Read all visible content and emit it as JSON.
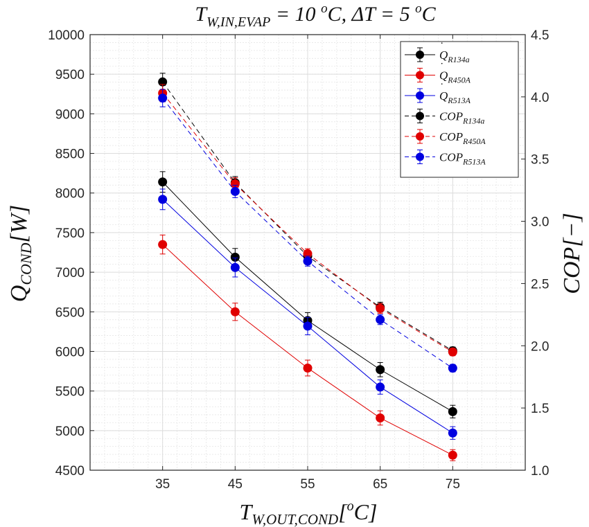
{
  "chart_data": {
    "type": "line",
    "title": "T_{W,IN,EVAP} = 10 °C, ΔT = 5 °C",
    "title_parts": {
      "t1": "T",
      "t1_sub": "W,IN,EVAP",
      "t1_rest": " = 10 ",
      "t1_sup": "o",
      "t1_end": "C, ΔT = 5 ",
      "t2_sup": "o",
      "t2_end": "C"
    },
    "xlabel": {
      "main": "T",
      "sub": "W,OUT,COND",
      "bracket_open": "[",
      "sup": "o",
      "unit": "C]"
    },
    "ylabel": {
      "main": "Q",
      "sub": "COND",
      "unit": "[W]"
    },
    "y2label": "COP[−]",
    "x": [
      35,
      45,
      55,
      65,
      75
    ],
    "xlim": [
      25,
      85
    ],
    "ylim": [
      4500,
      10000
    ],
    "y2lim": [
      1.0,
      4.5
    ],
    "x_ticks": [
      "35",
      "45",
      "55",
      "65",
      "75"
    ],
    "y_ticks": [
      "4500",
      "5000",
      "5500",
      "6000",
      "6500",
      "7000",
      "7500",
      "8000",
      "8500",
      "9000",
      "9500",
      "10000"
    ],
    "y2_ticks": [
      "1.0",
      "1.5",
      "2.0",
      "2.5",
      "3.0",
      "3.5",
      "4.0",
      "4.5"
    ],
    "grid": true,
    "legend_placement": "top-right",
    "series": [
      {
        "name_base": "Q",
        "name_sub": "R134a",
        "axis": "left",
        "style": "solid",
        "color": "#000000",
        "values": [
          8140,
          7190,
          6390,
          5770,
          5240
        ],
        "errors": [
          130,
          110,
          100,
          90,
          80
        ]
      },
      {
        "name_base": "Q",
        "name_sub": "R450A",
        "axis": "left",
        "style": "solid",
        "color": "#e00000",
        "values": [
          7350,
          6500,
          5790,
          5160,
          4690
        ],
        "errors": [
          120,
          110,
          100,
          90,
          70
        ]
      },
      {
        "name_base": "Q",
        "name_sub": "R513A",
        "axis": "left",
        "style": "solid",
        "color": "#0000e0",
        "values": [
          7920,
          7060,
          6320,
          5550,
          4970
        ],
        "errors": [
          130,
          120,
          110,
          90,
          80
        ]
      },
      {
        "name_base": "COP",
        "name_sub": "R134a",
        "axis": "right",
        "style": "dashed",
        "color": "#000000",
        "values": [
          4.12,
          3.31,
          2.72,
          2.31,
          1.96
        ],
        "errors": [
          0.07,
          0.05,
          0.04,
          0.04,
          0.03
        ]
      },
      {
        "name_base": "COP",
        "name_sub": "R450A",
        "axis": "right",
        "style": "dashed",
        "color": "#e00000",
        "values": [
          4.03,
          3.3,
          2.74,
          2.3,
          1.95
        ],
        "errors": [
          0.07,
          0.05,
          0.04,
          0.04,
          0.03
        ]
      },
      {
        "name_base": "COP",
        "name_sub": "R513A",
        "axis": "right",
        "style": "dashed",
        "color": "#0000e0",
        "values": [
          3.99,
          3.24,
          2.68,
          2.21,
          1.82
        ],
        "errors": [
          0.07,
          0.05,
          0.04,
          0.04,
          0.03
        ]
      }
    ]
  }
}
